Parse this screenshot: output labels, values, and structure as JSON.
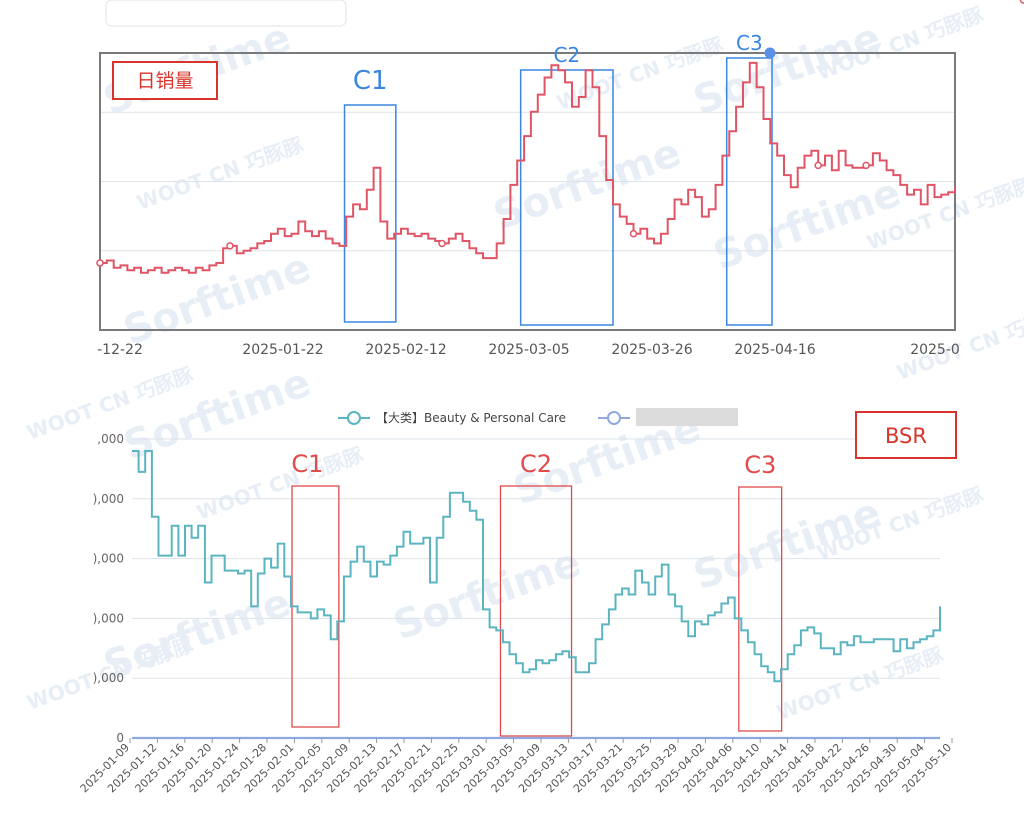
{
  "chart_data": [
    {
      "type": "line",
      "title": "",
      "badge": "日销量",
      "xlabel": "",
      "ylabel": "",
      "x_tick_labels": [
        "-12-22",
        "2025-01-22",
        "2025-02-12",
        "2025-03-05",
        "2025-03-26",
        "2025-04-16",
        "2025-0"
      ],
      "ylim": [
        0,
        100
      ],
      "grid": true,
      "series": [
        {
          "color": "#e05565",
          "values": [
            16,
            17,
            14,
            15,
            13,
            14,
            12,
            13,
            14,
            12,
            13,
            14,
            13,
            12,
            14,
            13,
            15,
            16,
            22,
            23,
            20,
            21,
            22,
            24,
            25,
            28,
            30,
            27,
            28,
            33,
            29,
            27,
            29,
            26,
            24,
            23,
            35,
            40,
            38,
            46,
            55,
            33,
            26,
            28,
            30,
            28,
            27,
            28,
            26,
            25,
            24,
            26,
            28,
            25,
            22,
            20,
            18,
            18,
            24,
            34,
            48,
            58,
            68,
            78,
            85,
            92,
            97,
            95,
            90,
            80,
            84,
            95,
            88,
            68,
            50,
            40,
            35,
            32,
            28,
            30,
            26,
            24,
            28,
            34,
            42,
            40,
            46,
            43,
            35,
            38,
            48,
            60,
            70,
            80,
            90,
            98,
            88,
            75,
            65,
            60,
            52,
            47,
            55,
            60,
            62,
            56,
            60,
            54,
            62,
            56,
            55,
            55,
            56,
            61,
            58,
            54,
            52,
            48,
            44,
            46,
            40,
            48,
            43,
            44,
            45,
            47
          ]
        }
      ],
      "markers_idx": [
        0,
        19,
        50,
        78,
        105,
        112,
        135
      ],
      "regions": [
        {
          "label": "C1",
          "color": "#3a86e0",
          "start": 0.286,
          "end": 0.346
        },
        {
          "label": "C2",
          "color": "#3a86e0",
          "start": 0.492,
          "end": 0.6
        },
        {
          "label": "C3",
          "color": "#3a86e0",
          "start": 0.733,
          "end": 0.786
        }
      ]
    },
    {
      "type": "line",
      "title": "",
      "badge": "BSR",
      "xlabel": "",
      "ylabel": "",
      "legend": [
        "【大类】Beauty & Personal Care",
        ""
      ],
      "legend_position": "top-center",
      "y_tick_labels": [
        ",000",
        "),000",
        "),000",
        "),000",
        "),000",
        "0"
      ],
      "x_tick_labels": [
        "2025-01-09",
        "2025-01-12",
        "2025-01-16",
        "2025-01-20",
        "2025-01-24",
        "2025-01-28",
        "2025-02-01",
        "2025-02-05",
        "2025-02-09",
        "2025-02-13",
        "2025-02-17",
        "2025-02-21",
        "2025-02-25",
        "2025-03-01",
        "2025-03-05",
        "2025-03-09",
        "2025-03-13",
        "2025-03-17",
        "2025-03-21",
        "2025-03-25",
        "2025-03-29",
        "2025-04-02",
        "2025-04-06",
        "2025-04-10",
        "2025-04-14",
        "2025-04-18",
        "2025-04-22",
        "2025-04-26",
        "2025-04-30",
        "2025-05-04",
        "2025-05-10"
      ],
      "ylim": [
        0,
        5000
      ],
      "grid": true,
      "series": [
        {
          "name": "【大类】Beauty & Personal Care",
          "color": "#5bb5c0",
          "values": [
            4800,
            4450,
            4800,
            3700,
            3050,
            3050,
            3550,
            3050,
            3550,
            3350,
            3550,
            2600,
            3050,
            3050,
            2800,
            2800,
            2750,
            2800,
            2200,
            2750,
            3000,
            2850,
            3250,
            2700,
            2200,
            2100,
            2100,
            2000,
            2150,
            2050,
            1650,
            1950,
            2700,
            2950,
            3200,
            2950,
            2700,
            2950,
            2900,
            3050,
            3200,
            3450,
            3250,
            3250,
            3350,
            2600,
            3350,
            3700,
            4100,
            4100,
            3950,
            3800,
            3650,
            2150,
            1850,
            1800,
            1600,
            1400,
            1250,
            1100,
            1150,
            1300,
            1250,
            1300,
            1400,
            1450,
            1350,
            1100,
            1100,
            1250,
            1650,
            1900,
            2150,
            2400,
            2500,
            2400,
            2800,
            2600,
            2400,
            2700,
            2900,
            2400,
            2200,
            1950,
            1700,
            1950,
            1900,
            2050,
            2100,
            2250,
            2350,
            2000,
            1800,
            1600,
            1400,
            1200,
            1100,
            950,
            1150,
            1400,
            1550,
            1800,
            1850,
            1750,
            1500,
            1500,
            1400,
            1600,
            1550,
            1700,
            1600,
            1600,
            1650,
            1650,
            1650,
            1450,
            1650,
            1500,
            1600,
            1650,
            1700,
            1800,
            2200
          ]
        },
        {
          "name": "",
          "color": "#8fa9e0",
          "values": [
            0,
            0,
            0,
            0,
            0,
            0,
            0,
            0,
            0,
            0,
            0,
            0,
            0,
            0,
            0,
            0,
            0,
            0,
            0,
            0,
            0,
            0,
            0,
            0,
            0,
            0,
            0,
            0,
            0,
            0,
            0,
            0,
            0,
            0,
            0,
            0,
            0,
            0,
            0,
            0,
            0,
            0,
            0,
            0,
            0,
            0,
            0,
            0,
            0,
            0,
            0,
            0,
            0,
            0,
            0,
            0,
            0,
            0,
            0,
            0,
            0,
            0,
            0,
            0,
            0,
            0,
            0,
            0,
            0,
            0,
            0,
            0,
            0,
            0,
            0,
            0,
            0,
            0,
            0,
            0,
            0,
            0,
            0,
            0,
            0,
            0,
            0,
            0,
            0,
            0,
            0,
            0,
            0,
            0,
            0,
            0,
            0,
            0,
            0,
            0,
            0,
            0,
            0,
            0,
            0,
            0,
            0,
            0,
            0,
            0,
            0,
            0,
            0,
            0,
            0,
            0,
            0,
            0,
            0,
            0,
            0,
            0,
            0
          ]
        }
      ],
      "regions": [
        {
          "label": "C1",
          "color": "#e04a4a",
          "start": 0.198,
          "end": 0.256
        },
        {
          "label": "C2",
          "color": "#e04a4a",
          "start": 0.456,
          "end": 0.544
        },
        {
          "label": "C3",
          "color": "#e04a4a",
          "start": 0.751,
          "end": 0.804
        }
      ]
    }
  ],
  "watermarks": [
    "Sorftime",
    "WOOT CN 巧豚豚"
  ],
  "colors": {
    "frame": "#7a7a7a",
    "grid": "#dde3ea",
    "badge_border": "#d9342b",
    "badge_text": "#d9342b"
  }
}
